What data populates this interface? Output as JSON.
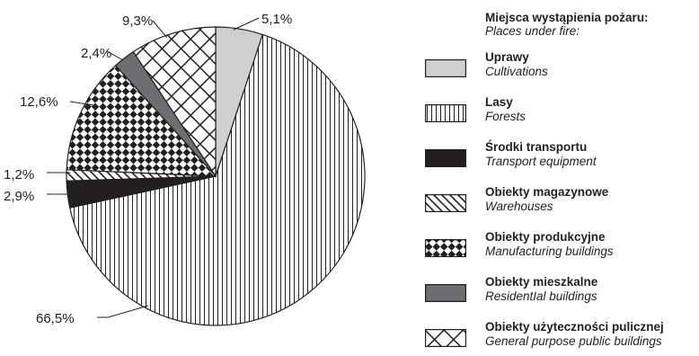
{
  "chart_data": {
    "type": "pie",
    "legend_title_pl": "Miejsca wystąpienia pożaru:",
    "legend_title_en": "Places under fire:",
    "legend_placement": "right",
    "slices": [
      {
        "label_pl": "Uprawy",
        "label_en": "Cultivations",
        "value": 5.1,
        "value_label": "5,1%",
        "fill": "#d0d0d0",
        "pattern": "solid-gray"
      },
      {
        "label_pl": "Lasy",
        "label_en": "Forests",
        "value": 66.5,
        "value_label": "66,5%",
        "fill": "#ffffff",
        "pattern": "vertical-lines"
      },
      {
        "label_pl": "Środki transportu",
        "label_en": "Transport equipment",
        "value": 2.9,
        "value_label": "2,9%",
        "fill": "#231f20",
        "pattern": "solid-black"
      },
      {
        "label_pl": "Obiekty magazynowe",
        "label_en": "Warehouses",
        "value": 1.2,
        "value_label": "1,2%",
        "fill": "#ffffff",
        "pattern": "diagonal-lines"
      },
      {
        "label_pl": "Obiekty produkcyjne",
        "label_en": "Manufacturing buildings",
        "value": 12.6,
        "value_label": "12,6%",
        "fill": "#ffffff",
        "pattern": "checkerboard"
      },
      {
        "label_pl": "Obiekty mieszkalne",
        "label_en": "ResidentIal buildings",
        "value": 2.4,
        "value_label": "2,4%",
        "fill": "#6d6e71",
        "pattern": "solid-darkgray"
      },
      {
        "label_pl": "Obiekty użyteczności pulicznej",
        "label_en": "General purpose public buildings",
        "value": 9.3,
        "value_label": "9,3%",
        "fill": "#ffffff",
        "pattern": "crosshatch"
      }
    ]
  }
}
